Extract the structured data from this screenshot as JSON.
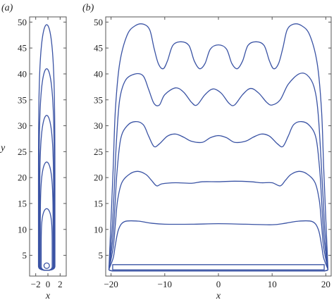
{
  "figure": {
    "color": "#3a53a4"
  },
  "chart_data": [
    {
      "type": "line",
      "panel_label": "(a)",
      "xlabel": "x",
      "ylabel": "y",
      "xlim": [
        -3,
        3
      ],
      "ylim": [
        1,
        51
      ],
      "xticks": [
        -2,
        0,
        2
      ],
      "xtick_labels": [
        "−2",
        "0",
        "2"
      ],
      "yticks": [
        5,
        10,
        15,
        20,
        25,
        30,
        35,
        40,
        45,
        50
      ],
      "ytick_labels": [
        "5",
        "10",
        "15",
        "20",
        "25",
        "30",
        "35",
        "40",
        "45",
        "50"
      ],
      "grid": false,
      "series": [
        {
          "kind": "circle",
          "cx": -0.2,
          "cy": 3.0,
          "r": 0.45
        },
        {
          "kind": "tongue",
          "half_width": 0.9,
          "top": 14.0,
          "bottom": 2.1
        },
        {
          "kind": "tongue",
          "half_width": 1.05,
          "top": 23.0,
          "bottom": 2.1
        },
        {
          "kind": "tongue",
          "half_width": 1.15,
          "top": 32.0,
          "bottom": 2.1
        },
        {
          "kind": "tongue",
          "half_width": 1.25,
          "top": 41.0,
          "bottom": 2.1
        },
        {
          "kind": "tongue",
          "half_width": 1.35,
          "top": 49.5,
          "bottom": 2.1
        }
      ]
    },
    {
      "type": "line",
      "panel_label": "(b)",
      "xlabel": "x",
      "xlim": [
        -21,
        21
      ],
      "ylim": [
        1,
        51
      ],
      "xticks": [
        -20,
        -10,
        0,
        10,
        20
      ],
      "xtick_labels": [
        "−20",
        "−10",
        "0",
        "10",
        "20"
      ],
      "yticks": [
        5,
        10,
        15,
        20,
        25,
        30,
        35,
        40,
        45,
        50
      ],
      "ytick_labels": [
        "5",
        "10",
        "15",
        "20",
        "25",
        "30",
        "35",
        "40",
        "45",
        "50"
      ],
      "grid": false,
      "bottom_rect": {
        "x": [
          -19.7,
          19.7
        ],
        "y": [
          2.2,
          3.2
        ]
      },
      "base_edge": {
        "bottom": 2.0,
        "left_end": -20.4,
        "right_end": 20.4
      },
      "series": [
        {
          "profile": [
            [
              -19.2,
              7.0
            ],
            [
              -18.6,
              10.0
            ],
            [
              -17.5,
              11.5
            ],
            [
              -15.0,
              11.6
            ],
            [
              -12.5,
              11.2
            ],
            [
              -10.0,
              11.0
            ],
            [
              -5.0,
              11.0
            ],
            [
              0.0,
              11.1
            ],
            [
              5.0,
              11.0
            ],
            [
              10.0,
              10.9
            ],
            [
              12.5,
              11.2
            ],
            [
              15.0,
              11.6
            ],
            [
              17.5,
              11.5
            ],
            [
              18.6,
              10.0
            ],
            [
              19.2,
              7.0
            ]
          ]
        },
        {
          "profile": [
            [
              -19.2,
              11.0
            ],
            [
              -18.8,
              15.5
            ],
            [
              -18.0,
              19.0
            ],
            [
              -16.5,
              20.7
            ],
            [
              -15.0,
              21.2
            ],
            [
              -13.5,
              20.6
            ],
            [
              -12.5,
              19.5
            ],
            [
              -11.5,
              18.4
            ],
            [
              -10.5,
              18.8
            ],
            [
              -8.0,
              19.0
            ],
            [
              -5.0,
              18.9
            ],
            [
              -3.0,
              19.2
            ],
            [
              0.0,
              19.2
            ],
            [
              3.0,
              19.3
            ],
            [
              6.0,
              19.2
            ],
            [
              8.0,
              19.0
            ],
            [
              10.0,
              19.0
            ],
            [
              11.5,
              18.4
            ],
            [
              12.5,
              19.5
            ],
            [
              13.5,
              20.6
            ],
            [
              15.0,
              21.2
            ],
            [
              16.5,
              20.7
            ],
            [
              18.0,
              19.0
            ],
            [
              18.8,
              15.5
            ],
            [
              19.2,
              11.0
            ]
          ]
        },
        {
          "profile": [
            [
              -19.3,
              14.0
            ],
            [
              -18.9,
              21.0
            ],
            [
              -18.2,
              27.5
            ],
            [
              -17.0,
              30.0
            ],
            [
              -15.5,
              30.8
            ],
            [
              -14.0,
              30.2
            ],
            [
              -13.0,
              28.0
            ],
            [
              -12.0,
              26.0
            ],
            [
              -11.0,
              26.5
            ],
            [
              -9.5,
              28.0
            ],
            [
              -8.0,
              28.4
            ],
            [
              -6.5,
              27.8
            ],
            [
              -5.0,
              27.0
            ],
            [
              -3.0,
              26.8
            ],
            [
              -1.5,
              27.7
            ],
            [
              0.0,
              28.1
            ],
            [
              1.5,
              27.7
            ],
            [
              3.0,
              26.8
            ],
            [
              5.0,
              27.0
            ],
            [
              6.5,
              27.8
            ],
            [
              8.0,
              28.4
            ],
            [
              9.5,
              28.0
            ],
            [
              11.0,
              26.5
            ],
            [
              12.0,
              26.0
            ],
            [
              13.0,
              28.0
            ],
            [
              14.0,
              30.2
            ],
            [
              15.5,
              30.8
            ],
            [
              17.0,
              30.0
            ],
            [
              18.2,
              27.5
            ],
            [
              18.9,
              21.0
            ],
            [
              19.3,
              14.0
            ]
          ]
        },
        {
          "profile": [
            [
              -19.4,
              18.0
            ],
            [
              -19.0,
              27.0
            ],
            [
              -18.4,
              35.0
            ],
            [
              -17.3,
              38.8
            ],
            [
              -15.5,
              40.0
            ],
            [
              -14.0,
              39.6
            ],
            [
              -13.0,
              37.0
            ],
            [
              -12.0,
              34.3
            ],
            [
              -11.0,
              34.0
            ],
            [
              -10.0,
              36.0
            ],
            [
              -8.0,
              37.3
            ],
            [
              -6.5,
              36.5
            ],
            [
              -5.0,
              34.5
            ],
            [
              -4.0,
              34.0
            ],
            [
              -2.5,
              36.0
            ],
            [
              -1.0,
              37.1
            ],
            [
              0.5,
              36.3
            ],
            [
              2.0,
              34.3
            ],
            [
              3.0,
              34.0
            ],
            [
              4.5,
              36.0
            ],
            [
              6.0,
              37.2
            ],
            [
              7.5,
              36.3
            ],
            [
              9.0,
              34.5
            ],
            [
              10.0,
              34.0
            ],
            [
              11.5,
              35.0
            ],
            [
              13.0,
              38.0
            ],
            [
              15.0,
              40.0
            ],
            [
              16.5,
              39.8
            ],
            [
              17.8,
              37.5
            ],
            [
              18.6,
              32.0
            ],
            [
              19.4,
              18.0
            ]
          ]
        },
        {
          "profile": [
            [
              -19.6,
              22.0
            ],
            [
              -19.2,
              33.0
            ],
            [
              -18.4,
              42.0
            ],
            [
              -17.0,
              47.5
            ],
            [
              -15.5,
              49.3
            ],
            [
              -14.0,
              49.6
            ],
            [
              -12.8,
              48.5
            ],
            [
              -12.0,
              45.0
            ],
            [
              -11.2,
              42.0
            ],
            [
              -10.3,
              41.0
            ],
            [
              -9.5,
              42.5
            ],
            [
              -8.5,
              45.5
            ],
            [
              -7.0,
              46.2
            ],
            [
              -5.5,
              45.5
            ],
            [
              -4.5,
              42.5
            ],
            [
              -3.5,
              41.0
            ],
            [
              -2.5,
              42.0
            ],
            [
              -1.5,
              44.8
            ],
            [
              0.0,
              45.6
            ],
            [
              1.5,
              44.8
            ],
            [
              2.5,
              42.0
            ],
            [
              3.5,
              41.0
            ],
            [
              4.5,
              42.5
            ],
            [
              5.5,
              45.5
            ],
            [
              7.0,
              46.2
            ],
            [
              8.5,
              45.5
            ],
            [
              9.5,
              42.5
            ],
            [
              10.3,
              41.0
            ],
            [
              11.2,
              42.0
            ],
            [
              12.0,
              45.0
            ],
            [
              12.8,
              48.5
            ],
            [
              14.0,
              49.6
            ],
            [
              15.5,
              49.3
            ],
            [
              17.0,
              47.5
            ],
            [
              18.4,
              42.0
            ],
            [
              19.2,
              33.0
            ],
            [
              19.6,
              22.0
            ]
          ]
        }
      ]
    }
  ]
}
